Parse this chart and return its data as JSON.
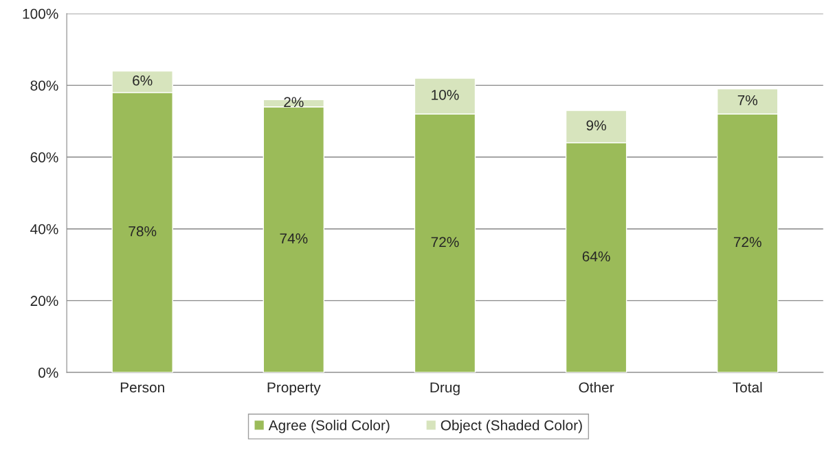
{
  "chart_data": {
    "type": "bar",
    "stacked": true,
    "categories": [
      "Person",
      "Property",
      "Drug",
      "Other",
      "Total"
    ],
    "series": [
      {
        "name": "Agree (Solid Color)",
        "color": "#9bbb59",
        "values": [
          78,
          74,
          72,
          64,
          72
        ],
        "value_labels": [
          "78%",
          "74%",
          "72%",
          "64%",
          "72%"
        ]
      },
      {
        "name": "Object (Shaded Color)",
        "color": "#d7e4bd",
        "values": [
          6,
          2,
          10,
          9,
          7
        ],
        "value_labels": [
          "6%",
          "2%",
          "10%",
          "9%",
          "7%"
        ]
      }
    ],
    "ylim": [
      0,
      100
    ],
    "yticks": [
      {
        "value": 0,
        "label": "0%"
      },
      {
        "value": 20,
        "label": "20%"
      },
      {
        "value": 40,
        "label": "40%"
      },
      {
        "value": 60,
        "label": "60%"
      },
      {
        "value": 80,
        "label": "80%"
      },
      {
        "value": 100,
        "label": "100%"
      }
    ],
    "grid": "y",
    "legend": "bottom"
  }
}
